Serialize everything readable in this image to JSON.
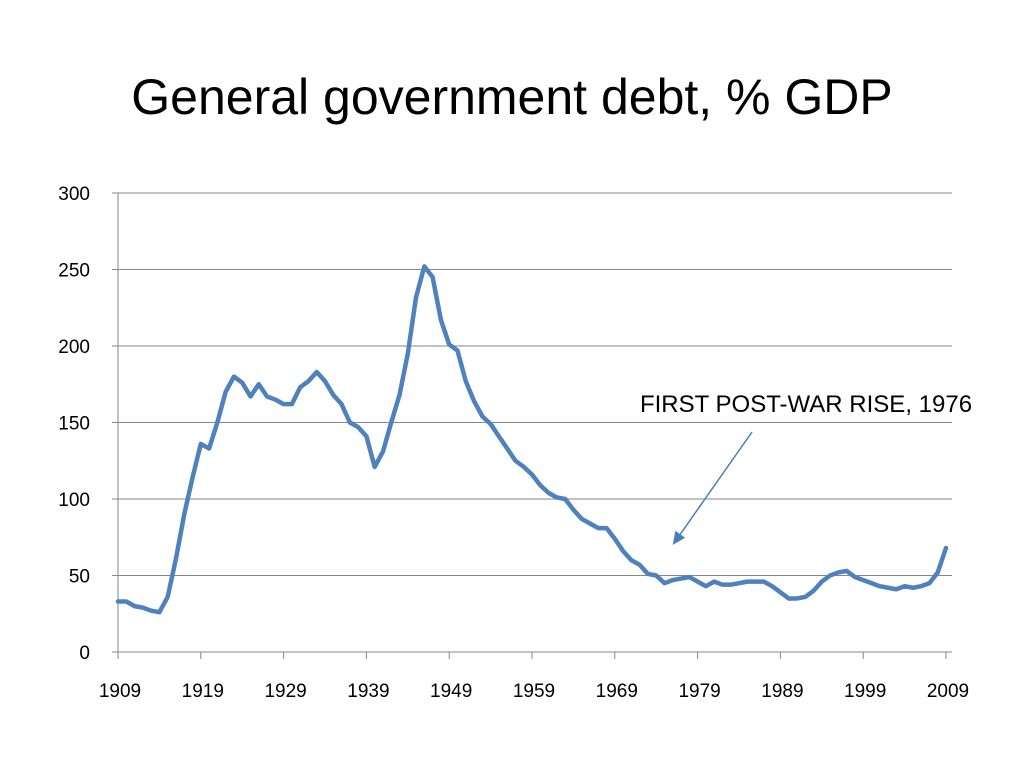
{
  "slide": {
    "title": "General government debt, % GDP"
  },
  "colors": {
    "series": "#4F81BD",
    "grid": "#868686",
    "annotation_arrow": "#4A7EBB"
  },
  "chart_data": {
    "type": "line",
    "title": "General government debt, % GDP",
    "xlabel": "",
    "ylabel": "",
    "xlim": [
      1909,
      2009
    ],
    "ylim": [
      0,
      300
    ],
    "y_ticks": [
      0,
      50,
      100,
      150,
      200,
      250,
      300
    ],
    "x_ticks": [
      1909,
      1919,
      1929,
      1939,
      1949,
      1959,
      1969,
      1979,
      1989,
      1999,
      2009
    ],
    "grid": "horizontal",
    "legend": "none",
    "annotation": {
      "text": "FIRST  POST-WAR RISE, 1976",
      "points_to": {
        "x": 1976,
        "y": 70
      }
    },
    "series": [
      {
        "x": [
          1909,
          1910,
          1911,
          1912,
          1913,
          1914,
          1915,
          1916,
          1917,
          1918,
          1919,
          1920,
          1921,
          1922,
          1923,
          1924,
          1925,
          1926,
          1927,
          1928,
          1929,
          1930,
          1931,
          1932,
          1933,
          1934,
          1935,
          1936,
          1937,
          1938,
          1939,
          1940,
          1941,
          1942,
          1943,
          1944,
          1945,
          1946,
          1947,
          1948,
          1949,
          1950,
          1951,
          1952,
          1953,
          1954,
          1955,
          1956,
          1957,
          1958,
          1959,
          1960,
          1961,
          1962,
          1963,
          1964,
          1965,
          1966,
          1967,
          1968,
          1969,
          1970,
          1971,
          1972,
          1973,
          1974,
          1975,
          1976,
          1977,
          1978,
          1979,
          1980,
          1981,
          1982,
          1983,
          1984,
          1985,
          1986,
          1987,
          1988,
          1989,
          1990,
          1991,
          1992,
          1993,
          1994,
          1995,
          1996,
          1997,
          1998,
          1999,
          2000,
          2001,
          2002,
          2003,
          2004,
          2005,
          2006,
          2007,
          2008,
          2009
        ],
        "values": [
          33,
          33,
          30,
          29,
          27,
          26,
          36,
          61,
          90,
          114,
          136,
          133,
          150,
          170,
          180,
          176,
          167,
          175,
          167,
          165,
          162,
          162,
          173,
          177,
          183,
          177,
          168,
          162,
          150,
          147,
          141,
          121,
          131,
          150,
          168,
          195,
          232,
          252,
          245,
          217,
          201,
          197,
          177,
          164,
          154,
          149,
          141,
          133,
          125,
          121,
          116,
          109,
          104,
          101,
          100,
          93,
          87,
          84,
          81,
          81,
          74,
          66,
          60,
          57,
          51,
          50,
          45,
          47,
          48,
          49,
          46,
          43,
          46,
          44,
          44,
          45,
          46,
          46,
          46,
          43,
          39,
          35,
          35,
          36,
          40,
          46,
          50,
          52,
          53,
          49,
          47,
          45,
          43,
          42,
          41,
          43,
          42,
          43,
          45,
          52,
          68
        ]
      }
    ]
  }
}
